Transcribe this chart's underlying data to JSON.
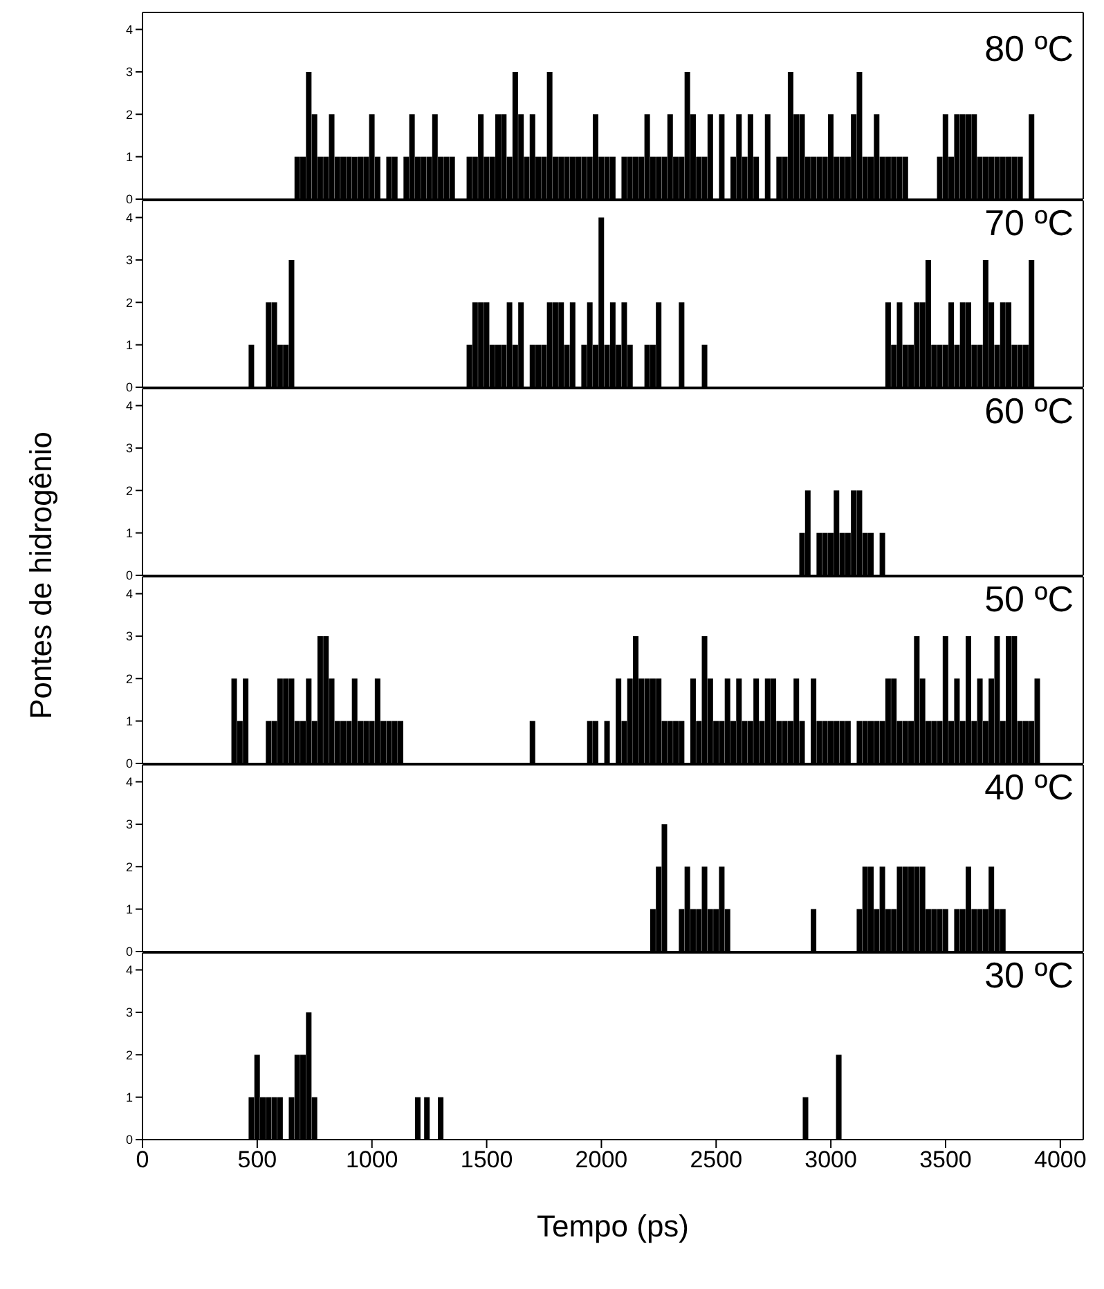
{
  "chart_data": [
    {
      "type": "bar",
      "title": "80 ºC",
      "color": "#000000",
      "xlim": [
        0,
        4100
      ],
      "xticks": [
        0,
        500,
        1000,
        1500,
        2000,
        2500,
        3000,
        3500,
        4000
      ],
      "ylim": [
        0,
        4.4
      ],
      "yticks": [
        0,
        1,
        2,
        3,
        4
      ],
      "tick_labels": "y",
      "x": [
        675,
        700,
        725,
        750,
        775,
        800,
        825,
        850,
        875,
        900,
        925,
        950,
        975,
        1000,
        1025,
        1075,
        1100,
        1150,
        1175,
        1200,
        1225,
        1250,
        1275,
        1300,
        1325,
        1350,
        1425,
        1450,
        1475,
        1500,
        1525,
        1550,
        1575,
        1600,
        1625,
        1650,
        1675,
        1700,
        1725,
        1750,
        1775,
        1800,
        1825,
        1850,
        1875,
        1900,
        1925,
        1950,
        1975,
        2000,
        2025,
        2050,
        2100,
        2125,
        2150,
        2175,
        2200,
        2225,
        2250,
        2275,
        2300,
        2325,
        2350,
        2375,
        2400,
        2425,
        2450,
        2475,
        2525,
        2575,
        2600,
        2625,
        2650,
        2675,
        2725,
        2775,
        2800,
        2825,
        2850,
        2875,
        2900,
        2925,
        2950,
        2975,
        3000,
        3025,
        3050,
        3075,
        3100,
        3125,
        3150,
        3175,
        3200,
        3225,
        3250,
        3275,
        3300,
        3325,
        3475,
        3500,
        3525,
        3550,
        3575,
        3600,
        3625,
        3650,
        3675,
        3700,
        3725,
        3750,
        3775,
        3800,
        3825,
        3875
      ],
      "values": [
        1,
        1,
        3,
        2,
        1,
        1,
        2,
        1,
        1,
        1,
        1,
        1,
        1,
        2,
        1,
        1,
        1,
        1,
        2,
        1,
        1,
        1,
        2,
        1,
        1,
        1,
        1,
        1,
        2,
        1,
        1,
        2,
        2,
        1,
        3,
        2,
        1,
        2,
        1,
        1,
        3,
        1,
        1,
        1,
        1,
        1,
        1,
        1,
        2,
        1,
        1,
        1,
        1,
        1,
        1,
        1,
        2,
        1,
        1,
        1,
        2,
        1,
        1,
        3,
        2,
        1,
        1,
        2,
        2,
        1,
        2,
        1,
        2,
        1,
        2,
        1,
        1,
        3,
        2,
        2,
        1,
        1,
        1,
        1,
        2,
        1,
        1,
        1,
        2,
        3,
        1,
        1,
        2,
        1,
        1,
        1,
        1,
        1,
        1,
        2,
        1,
        2,
        2,
        2,
        2,
        1,
        1,
        1,
        1,
        1,
        1,
        1,
        1,
        2
      ]
    },
    {
      "type": "bar",
      "title": "70 ºC",
      "color": "#000000",
      "xlim": [
        0,
        4100
      ],
      "xticks": [
        0,
        500,
        1000,
        1500,
        2000,
        2500,
        3000,
        3500,
        4000
      ],
      "ylim": [
        0,
        4.4
      ],
      "yticks": [
        0,
        1,
        2,
        3,
        4
      ],
      "tick_labels": "y",
      "x": [
        475,
        550,
        575,
        600,
        625,
        650,
        1425,
        1450,
        1475,
        1500,
        1525,
        1550,
        1575,
        1600,
        1625,
        1650,
        1700,
        1725,
        1750,
        1775,
        1800,
        1825,
        1850,
        1875,
        1925,
        1950,
        1975,
        2000,
        2025,
        2050,
        2075,
        2100,
        2125,
        2200,
        2225,
        2250,
        2350,
        2450,
        3250,
        3275,
        3300,
        3325,
        3350,
        3375,
        3400,
        3425,
        3450,
        3475,
        3500,
        3525,
        3550,
        3575,
        3600,
        3625,
        3650,
        3675,
        3700,
        3725,
        3750,
        3775,
        3800,
        3825,
        3850,
        3875
      ],
      "values": [
        1,
        2,
        2,
        1,
        1,
        3,
        1,
        2,
        2,
        2,
        1,
        1,
        1,
        2,
        1,
        2,
        1,
        1,
        1,
        2,
        2,
        2,
        1,
        2,
        1,
        2,
        1,
        4,
        1,
        2,
        1,
        2,
        1,
        1,
        1,
        2,
        2,
        1,
        2,
        1,
        2,
        1,
        1,
        2,
        2,
        3,
        1,
        1,
        1,
        2,
        1,
        2,
        2,
        1,
        1,
        3,
        2,
        1,
        2,
        2,
        1,
        1,
        1,
        3
      ]
    },
    {
      "type": "bar",
      "title": "60 ºC",
      "ylabel": "Pontes de hidrogênio",
      "color": "#000000",
      "xlim": [
        0,
        4100
      ],
      "xticks": [
        0,
        500,
        1000,
        1500,
        2000,
        2500,
        3000,
        3500,
        4000
      ],
      "ylim": [
        0,
        4.4
      ],
      "yticks": [
        0,
        1,
        2,
        3,
        4
      ],
      "tick_labels": "y",
      "x": [
        2875,
        2900,
        2950,
        2975,
        3000,
        3025,
        3050,
        3075,
        3100,
        3125,
        3150,
        3175,
        3225
      ],
      "values": [
        1,
        2,
        1,
        1,
        1,
        2,
        1,
        1,
        2,
        2,
        1,
        1,
        1
      ]
    },
    {
      "type": "bar",
      "title": "50 ºC",
      "color": "#000000",
      "xlim": [
        0,
        4100
      ],
      "xticks": [
        0,
        500,
        1000,
        1500,
        2000,
        2500,
        3000,
        3500,
        4000
      ],
      "ylim": [
        0,
        4.4
      ],
      "yticks": [
        0,
        1,
        2,
        3,
        4
      ],
      "tick_labels": "y",
      "x": [
        400,
        425,
        450,
        550,
        575,
        600,
        625,
        650,
        675,
        700,
        725,
        750,
        775,
        800,
        825,
        850,
        875,
        900,
        925,
        950,
        975,
        1000,
        1025,
        1050,
        1075,
        1100,
        1125,
        1700,
        1950,
        1975,
        2025,
        2075,
        2100,
        2125,
        2150,
        2175,
        2200,
        2225,
        2250,
        2275,
        2300,
        2325,
        2350,
        2400,
        2425,
        2450,
        2475,
        2500,
        2525,
        2550,
        2575,
        2600,
        2625,
        2650,
        2675,
        2700,
        2725,
        2750,
        2775,
        2800,
        2825,
        2850,
        2875,
        2925,
        2950,
        2975,
        3000,
        3025,
        3050,
        3075,
        3125,
        3150,
        3175,
        3200,
        3225,
        3250,
        3275,
        3300,
        3325,
        3350,
        3375,
        3400,
        3425,
        3450,
        3475,
        3500,
        3525,
        3550,
        3575,
        3600,
        3625,
        3650,
        3675,
        3700,
        3725,
        3750,
        3775,
        3800,
        3825,
        3850,
        3875,
        3900
      ],
      "values": [
        2,
        1,
        2,
        1,
        1,
        2,
        2,
        2,
        1,
        1,
        2,
        1,
        3,
        3,
        2,
        1,
        1,
        1,
        2,
        1,
        1,
        1,
        2,
        1,
        1,
        1,
        1,
        1,
        1,
        1,
        1,
        2,
        1,
        2,
        3,
        2,
        2,
        2,
        2,
        1,
        1,
        1,
        1,
        2,
        1,
        3,
        2,
        1,
        1,
        2,
        1,
        2,
        1,
        1,
        2,
        1,
        2,
        2,
        1,
        1,
        1,
        2,
        1,
        2,
        1,
        1,
        1,
        1,
        1,
        1,
        1,
        1,
        1,
        1,
        1,
        2,
        2,
        1,
        1,
        1,
        3,
        2,
        1,
        1,
        1,
        3,
        1,
        2,
        1,
        3,
        1,
        2,
        1,
        2,
        3,
        1,
        3,
        3,
        1,
        1,
        1,
        2
      ]
    },
    {
      "type": "bar",
      "title": "40 ºC",
      "color": "#000000",
      "xlim": [
        0,
        4100
      ],
      "xticks": [
        0,
        500,
        1000,
        1500,
        2000,
        2500,
        3000,
        3500,
        4000
      ],
      "ylim": [
        0,
        4.4
      ],
      "yticks": [
        0,
        1,
        2,
        3,
        4
      ],
      "tick_labels": "y",
      "x": [
        2225,
        2250,
        2275,
        2350,
        2375,
        2400,
        2425,
        2450,
        2475,
        2500,
        2525,
        2550,
        2925,
        3125,
        3150,
        3175,
        3200,
        3225,
        3250,
        3275,
        3300,
        3325,
        3350,
        3375,
        3400,
        3425,
        3450,
        3475,
        3500,
        3550,
        3575,
        3600,
        3625,
        3650,
        3675,
        3700,
        3725,
        3750
      ],
      "values": [
        1,
        2,
        3,
        1,
        2,
        1,
        1,
        2,
        1,
        1,
        2,
        1,
        1,
        1,
        2,
        2,
        1,
        2,
        1,
        1,
        2,
        2,
        2,
        2,
        2,
        1,
        1,
        1,
        1,
        1,
        1,
        2,
        1,
        1,
        1,
        2,
        1,
        1
      ]
    },
    {
      "type": "bar",
      "title": "30 ºC",
      "xlabel": "Tempo (ps)",
      "color": "#000000",
      "xlim": [
        0,
        4100
      ],
      "xticks": [
        0,
        500,
        1000,
        1500,
        2000,
        2500,
        3000,
        3500,
        4000
      ],
      "ylim": [
        0,
        4.4
      ],
      "yticks": [
        0,
        1,
        2,
        3,
        4
      ],
      "x": [
        475,
        500,
        525,
        550,
        575,
        600,
        650,
        675,
        700,
        725,
        750,
        1200,
        1240,
        1300,
        2890,
        3035
      ],
      "values": [
        1,
        2,
        1,
        1,
        1,
        1,
        1,
        2,
        2,
        3,
        1,
        1,
        1,
        1,
        1,
        2
      ]
    }
  ]
}
